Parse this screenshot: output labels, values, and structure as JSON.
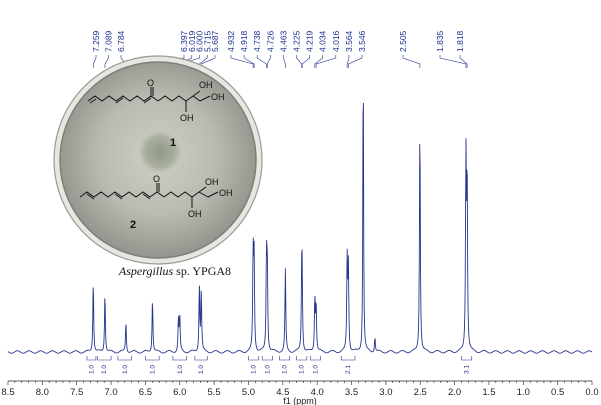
{
  "chart_data": {
    "type": "line",
    "xlabel": "f1 (ppm)",
    "xlim": [
      8.5,
      0.0
    ],
    "x_ticks": [
      "8.5",
      "8.0",
      "7.5",
      "7.0",
      "6.5",
      "6.0",
      "5.5",
      "5.0",
      "4.5",
      "4.0",
      "3.5",
      "3.0",
      "2.5",
      "2.0",
      "1.5",
      "1.0",
      "0.5",
      "0.0"
    ],
    "peak_labels": [
      "7.259",
      "7.089",
      "6.784",
      "6.397",
      "6.019",
      "6.000",
      "5.715",
      "5.687",
      "4.932",
      "4.918",
      "4.738",
      "4.726",
      "4.463",
      "4.225",
      "4.219",
      "4.034",
      "4.016",
      "3.564",
      "3.546",
      "2.505",
      "1.835",
      "1.818"
    ],
    "peaks": [
      {
        "x": 7.259,
        "height": 0.24
      },
      {
        "x": 7.089,
        "height": 0.2
      },
      {
        "x": 6.784,
        "height": 0.1
      },
      {
        "x": 6.397,
        "height": 0.18
      },
      {
        "x": 6.019,
        "height": 0.11
      },
      {
        "x": 6.0,
        "height": 0.11
      },
      {
        "x": 5.715,
        "height": 0.22
      },
      {
        "x": 5.687,
        "height": 0.2
      },
      {
        "x": 4.932,
        "height": 0.32
      },
      {
        "x": 4.918,
        "height": 0.3
      },
      {
        "x": 4.738,
        "height": 0.3
      },
      {
        "x": 4.726,
        "height": 0.28
      },
      {
        "x": 4.463,
        "height": 0.27
      },
      {
        "x": 4.225,
        "height": 0.22
      },
      {
        "x": 4.219,
        "height": 0.2
      },
      {
        "x": 4.034,
        "height": 0.18
      },
      {
        "x": 4.016,
        "height": 0.16
      },
      {
        "x": 3.564,
        "height": 0.3
      },
      {
        "x": 3.546,
        "height": 0.28
      },
      {
        "x": 3.33,
        "height": 1.0
      },
      {
        "x": 3.16,
        "height": 0.05
      },
      {
        "x": 2.505,
        "height": 0.77
      },
      {
        "x": 1.835,
        "height": 0.63
      },
      {
        "x": 1.818,
        "height": 0.58
      }
    ],
    "integrals": [
      {
        "from": 7.35,
        "to": 7.22,
        "label": "1.0"
      },
      {
        "from": 7.2,
        "to": 7.0,
        "label": "1.0"
      },
      {
        "from": 6.9,
        "to": 6.7,
        "label": "1.0"
      },
      {
        "from": 6.5,
        "to": 6.3,
        "label": "1.0"
      },
      {
        "from": 6.1,
        "to": 5.9,
        "label": "1.0"
      },
      {
        "from": 5.78,
        "to": 5.6,
        "label": "1.0"
      },
      {
        "from": 5.0,
        "to": 4.85,
        "label": "1.0"
      },
      {
        "from": 4.8,
        "to": 4.65,
        "label": "1.0"
      },
      {
        "from": 4.55,
        "to": 4.4,
        "label": "1.0"
      },
      {
        "from": 4.3,
        "to": 4.15,
        "label": "1.0"
      },
      {
        "from": 4.1,
        "to": 3.95,
        "label": "1.0"
      },
      {
        "from": 3.65,
        "to": 3.45,
        "label": "2.1"
      },
      {
        "from": 1.9,
        "to": 1.75,
        "label": "3.1"
      }
    ]
  },
  "inset": {
    "compound_1": "1",
    "compound_2": "2",
    "oh_label": "OH",
    "carbonyl_label": "O",
    "caption_italic": "Aspergillus",
    "caption_rest": " sp. YPGA8"
  }
}
